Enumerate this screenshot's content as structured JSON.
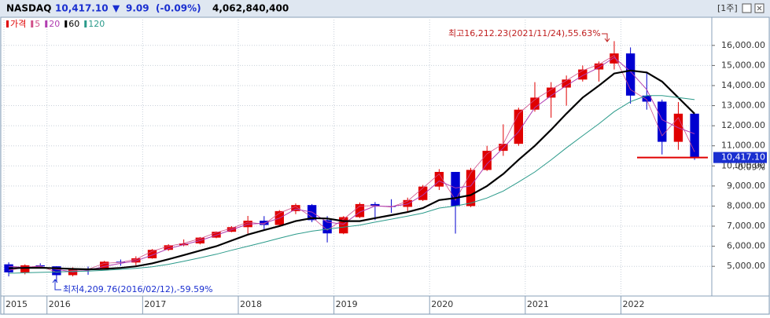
{
  "header": {
    "symbol": "NASDAQ",
    "price": "10,417.10",
    "arrow": "▼",
    "change": "9.09",
    "change_pct": "(-0.09%)",
    "volume": "4,062,840,400",
    "period": "[1주]"
  },
  "chart_data": {
    "type": "candlestick",
    "price_name": "가격",
    "up_color": "#e00000",
    "down_color": "#0000d0",
    "x": [
      2015.6,
      2015.77,
      2015.93,
      2016.1,
      2016.27,
      2016.43,
      2016.6,
      2016.77,
      2016.93,
      2017.1,
      2017.27,
      2017.43,
      2017.6,
      2017.77,
      2017.93,
      2018.1,
      2018.27,
      2018.43,
      2018.6,
      2018.77,
      2018.93,
      2019.1,
      2019.27,
      2019.43,
      2019.6,
      2019.77,
      2019.93,
      2020.1,
      2020.27,
      2020.43,
      2020.6,
      2020.77,
      2020.93,
      2021.1,
      2021.27,
      2021.43,
      2021.6,
      2021.77,
      2021.93,
      2022.1,
      2022.27,
      2022.43,
      2022.6,
      2022.77
    ],
    "open": [
      5100,
      4700,
      5050,
      5000,
      4560,
      4850,
      4840,
      5230,
      5190,
      5400,
      5820,
      6050,
      6140,
      6430,
      6720,
      6950,
      7270,
      7060,
      7750,
      8050,
      7300,
      6640,
      7450,
      8100,
      8000,
      7960,
      8300,
      8970,
      9700,
      8000,
      9800,
      10750,
      11100,
      12800,
      13400,
      13900,
      14300,
      14800,
      15100,
      15600,
      13500,
      13200,
      11200,
      12600
    ],
    "high": [
      5200,
      5100,
      5150,
      5000,
      4950,
      4990,
      5270,
      5340,
      5500,
      5860,
      6100,
      6340,
      6460,
      6730,
      7000,
      7510,
      7500,
      7800,
      8130,
      8100,
      7500,
      7500,
      8180,
      8200,
      8340,
      8420,
      9050,
      9840,
      9700,
      9900,
      11000,
      12070,
      12900,
      14170,
      14170,
      14500,
      15000,
      15200,
      16212,
      15900,
      14650,
      13300,
      13180,
      12600
    ],
    "low": [
      4500,
      4600,
      4900,
      4210,
      4500,
      4580,
      4830,
      5030,
      5040,
      5380,
      5770,
      6000,
      6090,
      6400,
      6700,
      6630,
      6800,
      7000,
      7600,
      7200,
      6190,
      6600,
      7400,
      7300,
      7660,
      7700,
      8250,
      8800,
      6630,
      7950,
      9750,
      10500,
      11000,
      12700,
      12400,
      13000,
      14200,
      14200,
      14800,
      13100,
      12800,
      10570,
      10800,
      10300
    ],
    "close": [
      4700,
      5050,
      5000,
      4560,
      4850,
      4840,
      5230,
      5190,
      5400,
      5820,
      6050,
      6140,
      6430,
      6720,
      6950,
      7270,
      7060,
      7750,
      8050,
      7300,
      6640,
      7450,
      8100,
      8000,
      7960,
      8300,
      8970,
      9700,
      8000,
      9800,
      10750,
      11100,
      12800,
      13400,
      13900,
      14300,
      14800,
      15100,
      15600,
      13500,
      13200,
      11200,
      12600,
      10417
    ],
    "series": [
      {
        "name": "5",
        "color": "#d0508a",
        "width": 0.8,
        "values": [
          4800,
          4950,
          5020,
          4700,
          4780,
          4850,
          5150,
          5200,
          5350,
          5750,
          6000,
          6150,
          6380,
          6680,
          6900,
          7200,
          7100,
          7650,
          7980,
          7450,
          6800,
          7350,
          8000,
          8020,
          7950,
          8250,
          8900,
          9600,
          8300,
          9650,
          10600,
          11100,
          12600,
          13300,
          13800,
          14250,
          14750,
          15050,
          15500,
          13800,
          13300,
          11500,
          12400,
          10700
        ]
      },
      {
        "name": "20",
        "color": "#b03cb0",
        "width": 1,
        "values": [
          5000,
          4950,
          4980,
          4850,
          4720,
          4800,
          5000,
          5150,
          5270,
          5560,
          5880,
          6080,
          6280,
          6550,
          6820,
          7100,
          7150,
          7400,
          7850,
          7700,
          7200,
          7100,
          7700,
          8000,
          7980,
          8100,
          8550,
          9250,
          8900,
          9000,
          10100,
          10900,
          11700,
          12900,
          13500,
          14000,
          14500,
          14900,
          15400,
          14700,
          13800,
          12300,
          11900,
          11600
        ]
      },
      {
        "name": "60",
        "color": "#000000",
        "width": 2.2,
        "values": [
          4900,
          4920,
          4930,
          4900,
          4870,
          4850,
          4870,
          4920,
          5000,
          5150,
          5350,
          5560,
          5780,
          6000,
          6280,
          6580,
          6800,
          7000,
          7250,
          7400,
          7380,
          7250,
          7250,
          7400,
          7550,
          7700,
          7900,
          8300,
          8400,
          8550,
          9000,
          9600,
          10300,
          11000,
          11800,
          12600,
          13400,
          14000,
          14600,
          14750,
          14650,
          14200,
          13400,
          12600
        ]
      },
      {
        "name": "120",
        "color": "#2a9a8a",
        "width": 1,
        "values": [
          4650,
          4680,
          4700,
          4720,
          4740,
          4760,
          4800,
          4850,
          4900,
          4980,
          5100,
          5250,
          5420,
          5600,
          5800,
          6000,
          6200,
          6400,
          6600,
          6750,
          6850,
          6950,
          7050,
          7200,
          7350,
          7500,
          7650,
          7900,
          8000,
          8150,
          8400,
          8750,
          9200,
          9700,
          10300,
          10900,
          11500,
          12100,
          12700,
          13200,
          13500,
          13500,
          13400,
          13300
        ]
      }
    ],
    "xlim": [
      2015.55,
      2022.95
    ],
    "xticks": [
      {
        "value": 2015.55,
        "label": "2015"
      },
      2016,
      2017,
      2018,
      2019,
      2020,
      2021,
      2022
    ],
    "ylim": [
      3600,
      17400
    ],
    "yticks": [
      {
        "value": 5000,
        "label": "5,000.00"
      },
      {
        "value": 6000,
        "label": "6,000.00"
      },
      {
        "value": 7000,
        "label": "7,000.00"
      },
      {
        "value": 8000,
        "label": "8,000.00"
      },
      {
        "value": 9000,
        "label": "9,000.00"
      },
      {
        "value": 10000,
        "label": "10,000.00"
      },
      {
        "value": 11000,
        "label": "11,000.00"
      },
      {
        "value": 12000,
        "label": "12,000.00"
      },
      {
        "value": 13000,
        "label": "13,000.00"
      },
      {
        "value": 14000,
        "label": "14,000.00"
      },
      {
        "value": 15000,
        "label": "15,000.00"
      },
      {
        "value": 16000,
        "label": "16,000.00"
      }
    ],
    "grid": true,
    "last": {
      "value": 10417.1,
      "label": "10,417.10"
    },
    "last_change": "-0.09%",
    "annotations": [
      "최고16,212.23(2021/11/24),55.63%",
      "최저4,209.76(2016/02/12),-59.59%"
    ]
  }
}
